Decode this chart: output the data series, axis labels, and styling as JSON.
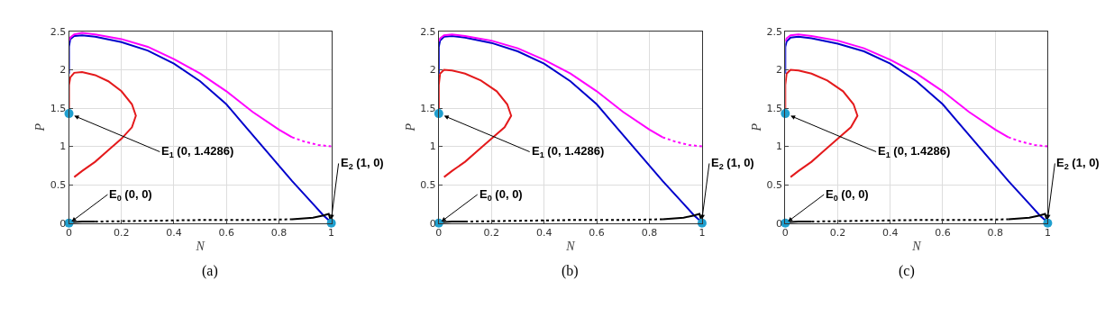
{
  "chart_data": [
    {
      "type": "line",
      "xlabel": "N",
      "ylabel": "P",
      "xlim": [
        0,
        1
      ],
      "ylim": [
        0,
        2.5
      ],
      "xticks": [
        0,
        0.2,
        0.4,
        0.6,
        0.8,
        1
      ],
      "yticks": [
        0,
        0.5,
        1,
        1.5,
        2,
        2.5
      ],
      "grid": true,
      "annotations": [
        {
          "text": "E$_{0}$ (0, 0)",
          "x": 0.01,
          "y": 0.02
        },
        {
          "text": "E$_{1}$ (0, 1.4286)",
          "x": 0.02,
          "y": 1.4
        },
        {
          "text": "E$_{2}$ (1, 0)",
          "x": 1,
          "y": 0.05
        },
        "(a)"
      ],
      "series": [
        {
          "color": "#e41a1c",
          "line_style": "solid",
          "x": [
            0.02,
            0.05,
            0.1,
            0.15,
            0.2,
            0.24,
            0.255,
            0.24,
            0.2,
            0.15,
            0.1,
            0.05,
            0.02,
            0.005,
            0,
            0,
            0
          ],
          "values": [
            0.6,
            0.68,
            0.8,
            0.95,
            1.1,
            1.25,
            1.4,
            1.55,
            1.72,
            1.85,
            1.93,
            1.97,
            1.96,
            1.9,
            1.8,
            1.6,
            1.5
          ]
        },
        {
          "color": "#0000cc",
          "line_style": "solid",
          "x": [
            1,
            0.97,
            0.93,
            0.85,
            0.75,
            0.65,
            0.6,
            0.5,
            0.4,
            0.3,
            0.2,
            0.1,
            0.05,
            0.02,
            0.005,
            0,
            0,
            0
          ],
          "values": [
            0.01,
            0.1,
            0.25,
            0.55,
            0.95,
            1.35,
            1.55,
            1.85,
            2.08,
            2.25,
            2.36,
            2.43,
            2.45,
            2.44,
            2.4,
            2.3,
            2.1,
            1.95
          ]
        },
        {
          "color": "#ff00ff",
          "line_style": "dotted",
          "x": [
            1,
            0.95,
            0.9,
            0.85
          ],
          "values": [
            1,
            1.02,
            1.06,
            1.12
          ]
        },
        {
          "color": "#ff00ff",
          "line_style": "solid",
          "x": [
            0.85,
            0.8,
            0.7,
            0.6,
            0.5,
            0.4,
            0.3,
            0.2,
            0.1,
            0.05,
            0.02,
            0.005,
            0
          ],
          "values": [
            1.12,
            1.22,
            1.45,
            1.72,
            1.95,
            2.14,
            2.3,
            2.4,
            2.46,
            2.48,
            2.46,
            2.42,
            2.38
          ]
        },
        {
          "color": "#000000",
          "line_style": "solid",
          "x": [
            0,
            0.05,
            0.1
          ],
          "values": [
            0.01,
            0.02,
            0.02
          ]
        },
        {
          "color": "#000000",
          "line_style": "dotted",
          "x": [
            0.1,
            0.3,
            0.5,
            0.7,
            0.85
          ],
          "values": [
            0.02,
            0.03,
            0.04,
            0.04,
            0.05
          ]
        },
        {
          "color": "#000000",
          "line_style": "solid",
          "x": [
            0.85,
            0.93,
            0.97,
            0.99,
            1
          ],
          "values": [
            0.05,
            0.07,
            0.1,
            0.12,
            0.01
          ]
        },
        {
          "type": "scatter",
          "marker": "circle",
          "color": "#1f9fcf",
          "x": [
            0,
            0,
            1
          ],
          "values": [
            0,
            1.4286,
            0
          ]
        }
      ]
    },
    {
      "type": "line",
      "xlabel": "N",
      "ylabel": "P",
      "xlim": [
        0,
        1
      ],
      "ylim": [
        0,
        2.5
      ],
      "xticks": [
        0,
        0.2,
        0.4,
        0.6,
        0.8,
        1
      ],
      "yticks": [
        0,
        0.5,
        1,
        1.5,
        2,
        2.5
      ],
      "grid": true,
      "annotations": [
        {
          "text": "E$_{0}$ (0, 0)",
          "x": 0.01,
          "y": 0.02
        },
        {
          "text": "E$_{1}$ (0, 1.4286)",
          "x": 0.02,
          "y": 1.4
        },
        {
          "text": "E$_{2}$ (1, 0)",
          "x": 1,
          "y": 0.05
        },
        "(b)"
      ],
      "series": [
        {
          "color": "#e41a1c",
          "line_style": "solid",
          "x": [
            0.02,
            0.05,
            0.1,
            0.15,
            0.2,
            0.25,
            0.275,
            0.26,
            0.22,
            0.16,
            0.1,
            0.05,
            0.02,
            0.005,
            0,
            0,
            0
          ],
          "values": [
            0.6,
            0.68,
            0.8,
            0.95,
            1.1,
            1.25,
            1.4,
            1.55,
            1.72,
            1.86,
            1.95,
            1.99,
            2.0,
            1.95,
            1.8,
            1.6,
            1.5
          ]
        },
        {
          "color": "#0000cc",
          "line_style": "solid",
          "x": [
            1,
            0.97,
            0.93,
            0.85,
            0.75,
            0.65,
            0.6,
            0.5,
            0.4,
            0.3,
            0.2,
            0.1,
            0.05,
            0.02,
            0.005,
            0,
            0,
            0
          ],
          "values": [
            0.01,
            0.1,
            0.25,
            0.55,
            0.95,
            1.35,
            1.55,
            1.85,
            2.08,
            2.24,
            2.35,
            2.42,
            2.44,
            2.43,
            2.38,
            2.3,
            2.1,
            1.95
          ]
        },
        {
          "color": "#ff00ff",
          "line_style": "dotted",
          "x": [
            1,
            0.95,
            0.9,
            0.85
          ],
          "values": [
            1,
            1.02,
            1.06,
            1.12
          ]
        },
        {
          "color": "#ff00ff",
          "line_style": "solid",
          "x": [
            0.85,
            0.8,
            0.7,
            0.6,
            0.5,
            0.4,
            0.3,
            0.2,
            0.1,
            0.05,
            0.02,
            0.005,
            0
          ],
          "values": [
            1.12,
            1.22,
            1.45,
            1.72,
            1.95,
            2.13,
            2.28,
            2.38,
            2.44,
            2.46,
            2.45,
            2.41,
            2.37
          ]
        },
        {
          "color": "#000000",
          "line_style": "solid",
          "x": [
            0,
            0.05,
            0.1
          ],
          "values": [
            0.01,
            0.02,
            0.02
          ]
        },
        {
          "color": "#000000",
          "line_style": "dotted",
          "x": [
            0.1,
            0.3,
            0.5,
            0.7,
            0.85
          ],
          "values": [
            0.02,
            0.03,
            0.04,
            0.04,
            0.05
          ]
        },
        {
          "color": "#000000",
          "line_style": "solid",
          "x": [
            0.85,
            0.93,
            0.97,
            0.99,
            1
          ],
          "values": [
            0.05,
            0.07,
            0.1,
            0.12,
            0.01
          ]
        },
        {
          "type": "scatter",
          "marker": "circle",
          "color": "#1f9fcf",
          "x": [
            0,
            0,
            1
          ],
          "values": [
            0,
            1.4286,
            0
          ]
        }
      ]
    },
    {
      "type": "line",
      "xlabel": "N",
      "ylabel": "P",
      "xlim": [
        0,
        1
      ],
      "ylim": [
        0,
        2.5
      ],
      "xticks": [
        0,
        0.2,
        0.4,
        0.6,
        0.8,
        1
      ],
      "yticks": [
        0,
        0.5,
        1,
        1.5,
        2,
        2.5
      ],
      "grid": true,
      "annotations": [
        {
          "text": "E$_{0}$ (0, 0)",
          "x": 0.01,
          "y": 0.02
        },
        {
          "text": "E$_{1}$ (0, 1.4286)",
          "x": 0.02,
          "y": 1.4
        },
        {
          "text": "E$_{2}$ (1, 0)",
          "x": 1,
          "y": 0.05
        },
        "(c)"
      ],
      "series": [
        {
          "color": "#e41a1c",
          "line_style": "solid",
          "x": [
            0.02,
            0.05,
            0.1,
            0.15,
            0.2,
            0.25,
            0.275,
            0.26,
            0.22,
            0.16,
            0.1,
            0.05,
            0.02,
            0.005,
            0,
            0,
            0
          ],
          "values": [
            0.6,
            0.68,
            0.8,
            0.95,
            1.1,
            1.25,
            1.4,
            1.55,
            1.72,
            1.86,
            1.95,
            1.99,
            2.0,
            1.95,
            1.8,
            1.6,
            1.5
          ]
        },
        {
          "color": "#0000cc",
          "line_style": "solid",
          "x": [
            1,
            0.97,
            0.93,
            0.85,
            0.75,
            0.65,
            0.6,
            0.5,
            0.4,
            0.3,
            0.2,
            0.1,
            0.05,
            0.02,
            0.005,
            0,
            0,
            0
          ],
          "values": [
            0.01,
            0.1,
            0.25,
            0.55,
            0.95,
            1.35,
            1.55,
            1.85,
            2.08,
            2.24,
            2.34,
            2.41,
            2.43,
            2.42,
            2.37,
            2.3,
            2.1,
            1.95
          ]
        },
        {
          "color": "#ff00ff",
          "line_style": "dotted",
          "x": [
            1,
            0.95,
            0.9,
            0.85
          ],
          "values": [
            1,
            1.02,
            1.06,
            1.12
          ]
        },
        {
          "color": "#ff00ff",
          "line_style": "solid",
          "x": [
            0.85,
            0.8,
            0.7,
            0.6,
            0.5,
            0.4,
            0.3,
            0.2,
            0.1,
            0.05,
            0.02,
            0.005,
            0
          ],
          "values": [
            1.12,
            1.22,
            1.45,
            1.72,
            1.95,
            2.13,
            2.28,
            2.38,
            2.44,
            2.46,
            2.45,
            2.41,
            2.37
          ]
        },
        {
          "color": "#000000",
          "line_style": "solid",
          "x": [
            0,
            0.05,
            0.1
          ],
          "values": [
            0.01,
            0.02,
            0.02
          ]
        },
        {
          "color": "#000000",
          "line_style": "dotted",
          "x": [
            0.1,
            0.3,
            0.5,
            0.7,
            0.85
          ],
          "values": [
            0.02,
            0.03,
            0.04,
            0.04,
            0.05
          ]
        },
        {
          "color": "#000000",
          "line_style": "solid",
          "x": [
            0.85,
            0.93,
            0.97,
            0.99,
            1
          ],
          "values": [
            0.05,
            0.07,
            0.1,
            0.12,
            0.01
          ]
        },
        {
          "type": "scatter",
          "marker": "circle",
          "color": "#1f9fcf",
          "x": [
            0,
            0,
            1
          ],
          "values": [
            0,
            1.4286,
            0
          ]
        }
      ]
    }
  ]
}
